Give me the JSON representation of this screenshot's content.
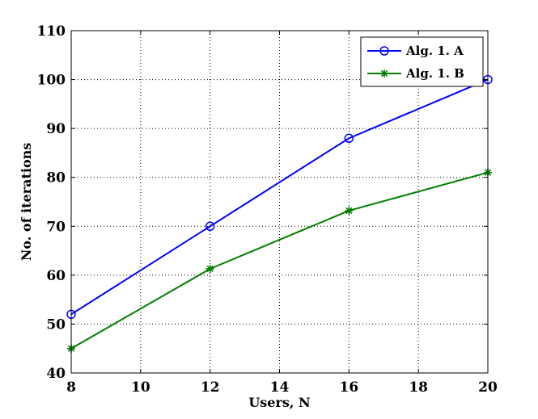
{
  "chart_data": {
    "type": "line",
    "title": "",
    "xlabel": "Users, N",
    "ylabel": "No. of iterations",
    "xlim": [
      8,
      20
    ],
    "ylim": [
      40,
      110
    ],
    "xticks": [
      8,
      10,
      12,
      14,
      16,
      18,
      20
    ],
    "yticks": [
      40,
      50,
      60,
      70,
      80,
      90,
      100,
      110
    ],
    "grid": true,
    "legend_position": "top-right",
    "x": [
      8,
      12,
      16,
      20
    ],
    "series": [
      {
        "name": "Alg. 1. A",
        "values": [
          52,
          70,
          88,
          100
        ],
        "color": "#0000ff",
        "marker": "circle"
      },
      {
        "name": "Alg. 1. B",
        "values": [
          45,
          61.3,
          73.2,
          81
        ],
        "color": "#008000",
        "marker": "star"
      }
    ]
  }
}
